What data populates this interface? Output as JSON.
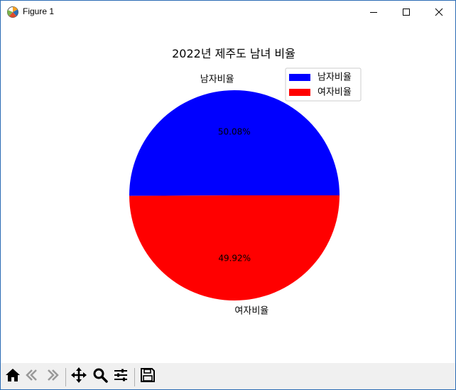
{
  "window": {
    "title": "Figure 1",
    "border_color": "#2b6cb5"
  },
  "icons": {
    "app": "matplotlib-logo-icon",
    "minimize": "minimize-icon",
    "maximize": "maximize-icon",
    "close": "close-icon"
  },
  "toolbar": {
    "buttons": [
      {
        "name": "home-icon"
      },
      {
        "name": "back-arrow-icon"
      },
      {
        "name": "forward-arrow-icon"
      },
      {
        "name": "pan-move-icon"
      },
      {
        "name": "zoom-magnifier-icon"
      },
      {
        "name": "configure-subplots-icon"
      },
      {
        "name": "save-floppy-icon"
      }
    ]
  },
  "chart_data": {
    "type": "pie",
    "title": "2022년 제주도 남녀 비율",
    "labels": [
      "남자비율",
      "여자비율"
    ],
    "values": [
      50.08,
      49.92
    ],
    "autopct_labels": [
      "50.08%",
      "49.92%"
    ],
    "colors": [
      "#0000ff",
      "#ff0000"
    ],
    "start_angle": 0,
    "legend": {
      "entries": [
        "남자비율",
        "여자비율"
      ],
      "position": "upper-right"
    }
  }
}
